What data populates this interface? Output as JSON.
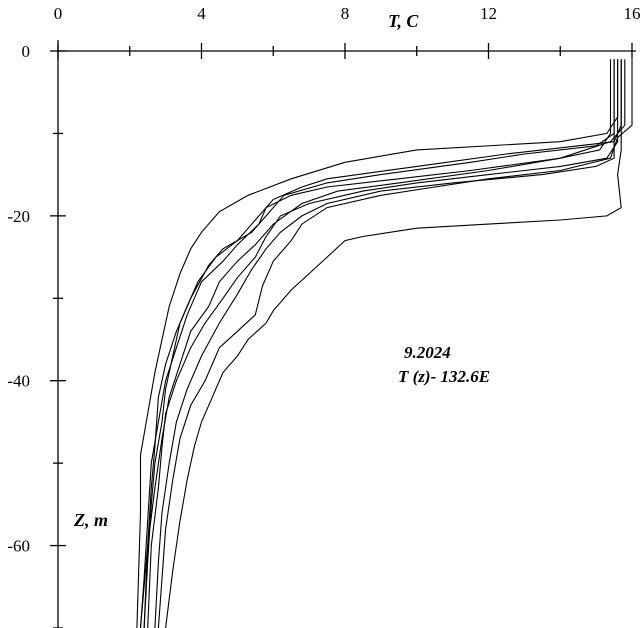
{
  "chart_data": {
    "type": "line",
    "title": "",
    "xlabel": "T, C",
    "ylabel": "Z, m",
    "xlim": [
      0,
      16
    ],
    "ylim": [
      -70,
      0
    ],
    "x_ticks": [
      0,
      4,
      8,
      12,
      16
    ],
    "x_tick_labels": [
      "0",
      "4",
      "8",
      "12",
      "16"
    ],
    "y_ticks": [
      0,
      -20,
      -40,
      -60
    ],
    "y_tick_labels": [
      "0",
      "-20",
      "-40",
      "-60"
    ],
    "x_axis_position": "top",
    "grid": false,
    "annotations": [
      "9.2024",
      "T (z)- 132.6E"
    ],
    "series": [
      {
        "values": [
          [
            15.6,
            -1
          ],
          [
            15.6,
            -8
          ],
          [
            15.3,
            -10
          ],
          [
            14.0,
            -11
          ],
          [
            10.0,
            -12
          ],
          [
            8.0,
            -13.5
          ],
          [
            6.5,
            -15.5
          ],
          [
            5.3,
            -17.5
          ],
          [
            4.5,
            -19.5
          ],
          [
            4.0,
            -22
          ],
          [
            3.7,
            -24
          ],
          [
            3.4,
            -27
          ],
          [
            3.1,
            -31
          ],
          [
            2.9,
            -35
          ],
          [
            2.7,
            -39
          ],
          [
            2.5,
            -44
          ],
          [
            2.3,
            -49
          ],
          [
            2.3,
            -56
          ],
          [
            2.25,
            -63
          ],
          [
            2.2,
            -70
          ]
        ]
      },
      {
        "values": [
          [
            15.7,
            -1
          ],
          [
            15.7,
            -9
          ],
          [
            15.5,
            -11
          ],
          [
            14.5,
            -11.5
          ],
          [
            12.5,
            -12.5
          ],
          [
            10.0,
            -14
          ],
          [
            7.5,
            -15.5
          ],
          [
            6.8,
            -16.5
          ],
          [
            6.0,
            -18
          ],
          [
            5.5,
            -20.5
          ],
          [
            5.0,
            -23
          ],
          [
            4.4,
            -25
          ],
          [
            3.9,
            -28
          ],
          [
            3.6,
            -31
          ],
          [
            3.3,
            -34
          ],
          [
            3.0,
            -38
          ],
          [
            2.8,
            -42
          ],
          [
            2.7,
            -48
          ],
          [
            2.6,
            -53
          ],
          [
            2.5,
            -60
          ],
          [
            2.4,
            -70
          ]
        ]
      },
      {
        "values": [
          [
            15.5,
            -1
          ],
          [
            15.5,
            -10
          ],
          [
            15.0,
            -11.5
          ],
          [
            13.0,
            -12.5
          ],
          [
            11.5,
            -13.5
          ],
          [
            9.0,
            -15
          ],
          [
            7.5,
            -16
          ],
          [
            6.3,
            -17.5
          ],
          [
            5.8,
            -20
          ],
          [
            5.4,
            -22
          ],
          [
            4.6,
            -24
          ],
          [
            4.2,
            -26
          ],
          [
            3.7,
            -30
          ],
          [
            3.4,
            -33
          ],
          [
            3.2,
            -37
          ],
          [
            3.0,
            -41
          ],
          [
            2.9,
            -45
          ],
          [
            2.7,
            -50
          ],
          [
            2.6,
            -55
          ],
          [
            2.5,
            -62
          ],
          [
            2.4,
            -70
          ]
        ]
      },
      {
        "values": [
          [
            15.8,
            -1
          ],
          [
            15.8,
            -9
          ],
          [
            15.4,
            -11
          ],
          [
            14.0,
            -13
          ],
          [
            12.0,
            -14.5
          ],
          [
            9.5,
            -16
          ],
          [
            7.8,
            -17
          ],
          [
            6.8,
            -18.5
          ],
          [
            6.0,
            -21
          ],
          [
            5.5,
            -23.5
          ],
          [
            5.0,
            -25.5
          ],
          [
            4.5,
            -28
          ],
          [
            4.2,
            -31
          ],
          [
            3.7,
            -34
          ],
          [
            3.4,
            -38
          ],
          [
            3.1,
            -42
          ],
          [
            2.9,
            -47
          ],
          [
            2.7,
            -53
          ],
          [
            2.5,
            -60
          ],
          [
            2.3,
            -70
          ]
        ]
      },
      {
        "values": [
          [
            15.4,
            -1
          ],
          [
            15.4,
            -10
          ],
          [
            15.1,
            -12
          ],
          [
            14.0,
            -13
          ],
          [
            11.5,
            -14.5
          ],
          [
            9.5,
            -15.5
          ],
          [
            7.5,
            -16.5
          ],
          [
            6.5,
            -17.5
          ],
          [
            5.8,
            -19
          ],
          [
            5.6,
            -21
          ],
          [
            5.0,
            -23.5
          ],
          [
            4.6,
            -25.5
          ],
          [
            4.0,
            -28
          ],
          [
            3.6,
            -32
          ],
          [
            3.3,
            -36
          ],
          [
            3.0,
            -40
          ],
          [
            2.8,
            -45
          ],
          [
            2.6,
            -50
          ],
          [
            2.5,
            -57
          ],
          [
            2.4,
            -64
          ],
          [
            2.3,
            -70
          ]
        ]
      },
      {
        "values": [
          [
            15.6,
            -1
          ],
          [
            15.6,
            -11
          ],
          [
            15.3,
            -13
          ],
          [
            14.0,
            -14
          ],
          [
            12.0,
            -15
          ],
          [
            10.0,
            -16
          ],
          [
            8.5,
            -17
          ],
          [
            7.0,
            -18.5
          ],
          [
            6.2,
            -20
          ],
          [
            5.8,
            -22.5
          ],
          [
            5.5,
            -25
          ],
          [
            5.0,
            -27.5
          ],
          [
            4.6,
            -30
          ],
          [
            4.1,
            -33
          ],
          [
            3.7,
            -36
          ],
          [
            3.3,
            -40
          ],
          [
            3.0,
            -44
          ],
          [
            2.9,
            -48
          ],
          [
            2.8,
            -53
          ],
          [
            2.6,
            -60
          ],
          [
            2.5,
            -70
          ]
        ]
      },
      {
        "values": [
          [
            15.5,
            -1
          ],
          [
            15.5,
            -13
          ],
          [
            15.0,
            -14
          ],
          [
            13.5,
            -15
          ],
          [
            11.0,
            -16
          ],
          [
            9.0,
            -17
          ],
          [
            7.5,
            -18.5
          ],
          [
            6.8,
            -20
          ],
          [
            6.2,
            -22
          ],
          [
            5.8,
            -24
          ],
          [
            5.4,
            -26.5
          ],
          [
            5.0,
            -29.5
          ],
          [
            4.5,
            -33
          ],
          [
            4.0,
            -37
          ],
          [
            3.6,
            -41
          ],
          [
            3.3,
            -45
          ],
          [
            3.1,
            -50
          ],
          [
            2.9,
            -56
          ],
          [
            2.8,
            -62
          ],
          [
            2.7,
            -70
          ]
        ]
      },
      {
        "values": [
          [
            16.0,
            -1
          ],
          [
            16.0,
            -9
          ],
          [
            15.6,
            -10.5
          ],
          [
            15.4,
            -13
          ],
          [
            14.0,
            -14.5
          ],
          [
            12.0,
            -15.5
          ],
          [
            10.5,
            -16.5
          ],
          [
            9.0,
            -17.5
          ],
          [
            7.5,
            -19
          ],
          [
            6.8,
            -21
          ],
          [
            6.5,
            -23
          ],
          [
            6.0,
            -25.5
          ],
          [
            5.7,
            -28.5
          ],
          [
            5.5,
            -32
          ],
          [
            5.0,
            -34
          ],
          [
            4.5,
            -36
          ],
          [
            4.1,
            -40
          ],
          [
            3.7,
            -43
          ],
          [
            3.4,
            -47
          ],
          [
            3.2,
            -52
          ],
          [
            3.0,
            -58
          ],
          [
            2.9,
            -64
          ],
          [
            2.8,
            -70
          ]
        ]
      },
      {
        "values": [
          [
            15.7,
            -1
          ],
          [
            15.7,
            -12
          ],
          [
            15.6,
            -15
          ],
          [
            15.7,
            -19
          ],
          [
            15.3,
            -20
          ],
          [
            14.0,
            -20.5
          ],
          [
            12.0,
            -21
          ],
          [
            10.0,
            -21.5
          ],
          [
            8.5,
            -22.5
          ],
          [
            8.0,
            -23
          ],
          [
            7.5,
            -25
          ],
          [
            7.0,
            -27
          ],
          [
            6.5,
            -29
          ],
          [
            6.0,
            -31.5
          ],
          [
            5.8,
            -33
          ],
          [
            5.3,
            -35
          ],
          [
            5.0,
            -37
          ],
          [
            4.6,
            -39
          ],
          [
            4.3,
            -42
          ],
          [
            4.0,
            -45
          ],
          [
            3.8,
            -48
          ],
          [
            3.6,
            -52
          ],
          [
            3.4,
            -57
          ],
          [
            3.2,
            -63
          ],
          [
            3.0,
            -70
          ]
        ]
      }
    ]
  }
}
